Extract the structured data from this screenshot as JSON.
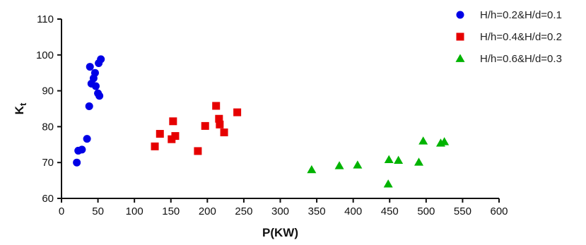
{
  "chart_data": {
    "type": "scatter",
    "xlabel": "P(KW)",
    "ylabel_main": "K",
    "ylabel_sub": "t",
    "xlim": [
      0,
      600
    ],
    "ylim": [
      60,
      110
    ],
    "x_ticks": [
      0,
      50,
      100,
      150,
      200,
      250,
      300,
      350,
      400,
      450,
      500,
      550,
      600
    ],
    "y_ticks": [
      60,
      70,
      80,
      90,
      100,
      110
    ],
    "grid": false,
    "legend_position": "top-right",
    "series": [
      {
        "name": "H/h=0.2&H/d=0.1",
        "marker": "circle",
        "color": "#0000e6",
        "points": [
          {
            "x": 21,
            "y": 70.0
          },
          {
            "x": 23,
            "y": 73.3
          },
          {
            "x": 28,
            "y": 73.6
          },
          {
            "x": 35,
            "y": 76.6
          },
          {
            "x": 38,
            "y": 85.7
          },
          {
            "x": 39,
            "y": 96.7
          },
          {
            "x": 41,
            "y": 92.0
          },
          {
            "x": 44,
            "y": 93.5
          },
          {
            "x": 46,
            "y": 95.0
          },
          {
            "x": 47,
            "y": 91.3
          },
          {
            "x": 50,
            "y": 89.3
          },
          {
            "x": 51,
            "y": 97.7
          },
          {
            "x": 52,
            "y": 88.6
          },
          {
            "x": 54,
            "y": 98.8
          }
        ]
      },
      {
        "name": "H/h=0.4&H/d=0.2",
        "marker": "square",
        "color": "#e60000",
        "points": [
          {
            "x": 128,
            "y": 74.5
          },
          {
            "x": 135,
            "y": 78.0
          },
          {
            "x": 151,
            "y": 76.5
          },
          {
            "x": 153,
            "y": 81.5
          },
          {
            "x": 156,
            "y": 77.4
          },
          {
            "x": 187,
            "y": 73.2
          },
          {
            "x": 197,
            "y": 80.2
          },
          {
            "x": 212,
            "y": 85.8
          },
          {
            "x": 216,
            "y": 82.2
          },
          {
            "x": 217,
            "y": 80.6
          },
          {
            "x": 223,
            "y": 78.4
          },
          {
            "x": 241,
            "y": 84.0
          }
        ]
      },
      {
        "name": "H/h=0.6&H/d=0.3",
        "marker": "triangle",
        "color": "#00b300",
        "points": [
          {
            "x": 343,
            "y": 68.0
          },
          {
            "x": 381,
            "y": 69.1
          },
          {
            "x": 406,
            "y": 69.3
          },
          {
            "x": 448,
            "y": 64.0
          },
          {
            "x": 449,
            "y": 70.8
          },
          {
            "x": 462,
            "y": 70.6
          },
          {
            "x": 490,
            "y": 70.1
          },
          {
            "x": 496,
            "y": 76.0
          },
          {
            "x": 520,
            "y": 75.4
          },
          {
            "x": 525,
            "y": 75.8
          }
        ]
      }
    ]
  }
}
